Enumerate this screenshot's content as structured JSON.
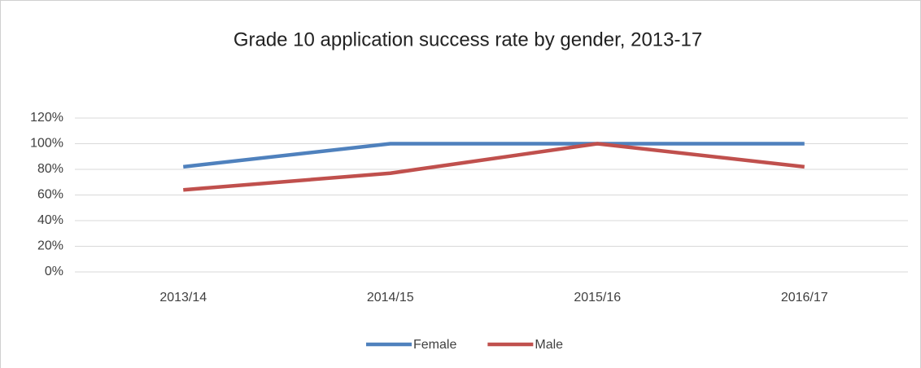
{
  "chart_data": {
    "type": "line",
    "title": "Grade 10 application success rate by gender, 2013-17",
    "categories": [
      "2013/14",
      "2014/15",
      "2015/16",
      "2016/17"
    ],
    "series": [
      {
        "name": "Female",
        "color": "#4f81bd",
        "values": [
          82,
          100,
          100,
          100
        ]
      },
      {
        "name": "Male",
        "color": "#c0504d",
        "values": [
          64,
          77,
          100,
          82
        ]
      }
    ],
    "ylim": [
      0,
      120
    ],
    "yticks": [
      {
        "value": 0,
        "label": "0%"
      },
      {
        "value": 20,
        "label": "20%"
      },
      {
        "value": 40,
        "label": "40%"
      },
      {
        "value": 60,
        "label": "60%"
      },
      {
        "value": 80,
        "label": "80%"
      },
      {
        "value": 100,
        "label": "100%"
      },
      {
        "value": 120,
        "label": "120%"
      }
    ],
    "grid": true,
    "legend": "bottom"
  }
}
